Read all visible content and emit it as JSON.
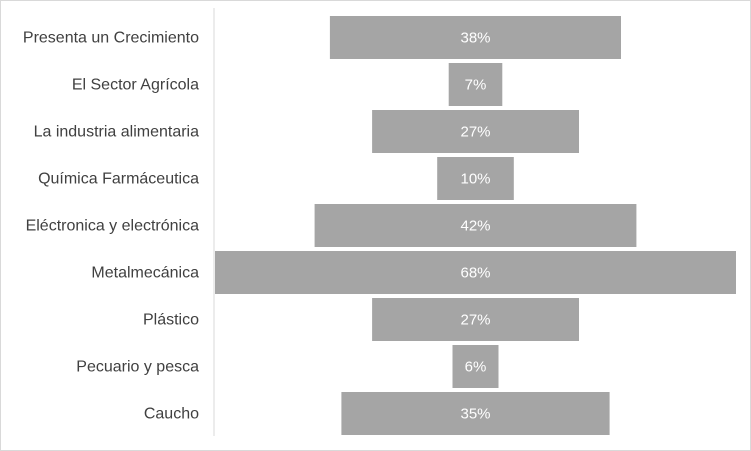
{
  "chart_data": {
    "type": "bar",
    "subtype": "funnel",
    "categories": [
      "Presenta un Crecimiento",
      "El Sector Agrícola",
      "La industria alimentaria",
      "Química Farmáceutica",
      "Eléctronica y electrónica",
      "Metalmecánica",
      "Plástico",
      "Pecuario y pesca",
      "Caucho"
    ],
    "values": [
      38,
      7,
      27,
      10,
      42,
      68,
      27,
      6,
      35
    ],
    "value_labels": [
      "38%",
      "7%",
      "27%",
      "10%",
      "42%",
      "68%",
      "27%",
      "6%",
      "35%"
    ],
    "unit": "%",
    "title": "",
    "xlabel": "",
    "ylabel": "",
    "legend": "none",
    "grid": false,
    "colors": {
      "bar": "#a5a5a5",
      "value_text": "#ffffff",
      "category_text": "#404040",
      "axis_line": "#d9d9d9",
      "border": "#d9d9d9"
    }
  }
}
